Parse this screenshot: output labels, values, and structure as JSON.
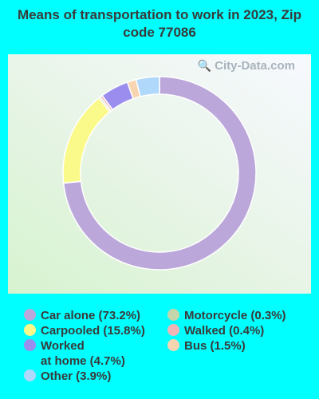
{
  "title": "Means of transportation to work in 2023, Zip code 77086",
  "watermark": "City-Data.com",
  "chart_data": {
    "type": "pie",
    "donut": true,
    "title": "Means of transportation to work in 2023, Zip code 77086",
    "slices": [
      {
        "label": "Car alone",
        "value": 73.2,
        "color": "#bba7d9"
      },
      {
        "label": "Carpooled",
        "value": 15.8,
        "color": "#fafa8a"
      },
      {
        "label": "Motorcycle",
        "value": 0.3,
        "color": "#c5d6ab"
      },
      {
        "label": "Walked",
        "value": 0.4,
        "color": "#f2b5b5"
      },
      {
        "label": "Worked at home",
        "value": 4.7,
        "color": "#9b8ded"
      },
      {
        "label": "Bus",
        "value": 1.5,
        "color": "#f7d5b0"
      },
      {
        "label": "Other",
        "value": 3.9,
        "color": "#b0d8fb"
      }
    ]
  },
  "legend": {
    "left": [
      {
        "label": "Car alone (73.2%)",
        "color": "#bba7d9"
      },
      {
        "label": "Carpooled (15.8%)",
        "color": "#fafa8a"
      },
      {
        "label": "Worked\nat home (4.7%)",
        "color": "#9b8ded"
      },
      {
        "label": "Other (3.9%)",
        "color": "#b0d8fb"
      }
    ],
    "right": [
      {
        "label": "Motorcycle (0.3%)",
        "color": "#c5d6ab"
      },
      {
        "label": "Walked (0.4%)",
        "color": "#f2b5b5"
      },
      {
        "label": "Bus (1.5%)",
        "color": "#f7d5b0"
      }
    ]
  }
}
